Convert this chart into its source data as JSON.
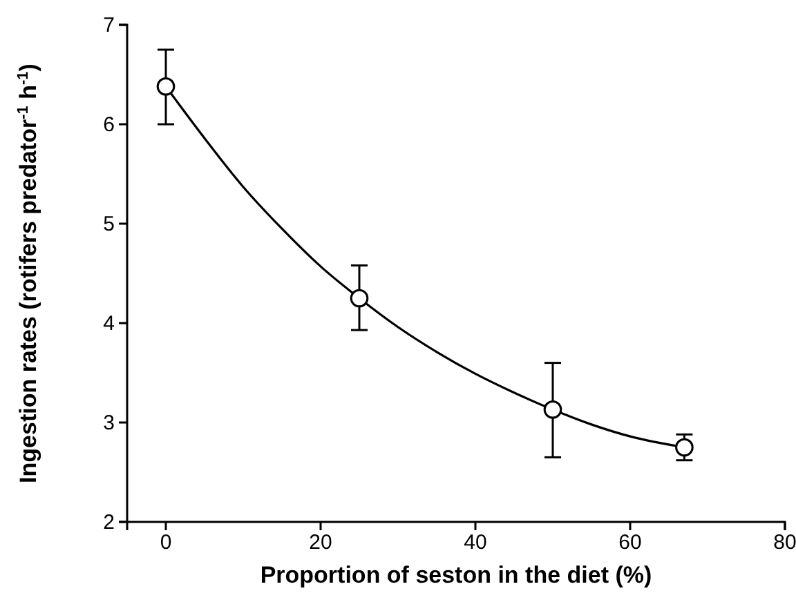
{
  "chart_data": {
    "type": "scatter",
    "xlabel": "Proportion of seston in the diet (%)",
    "ylabel": "Ingestion rates (rotifers predator$^{-1}$ h$^{-1}$)",
    "xlim": [
      -5,
      80
    ],
    "xticks": [
      0,
      20,
      40,
      60,
      80
    ],
    "ylim": [
      2,
      7
    ],
    "yticks": [
      2,
      3,
      4,
      5,
      6,
      7
    ],
    "grid": false,
    "series": [
      {
        "type": "line",
        "color": "#000000",
        "x": [
          0,
          5,
          10,
          15,
          20,
          25,
          30,
          35,
          40,
          45,
          50,
          55,
          60,
          67
        ],
        "values": [
          6.38,
          5.86,
          5.37,
          4.95,
          4.57,
          4.25,
          3.96,
          3.71,
          3.49,
          3.3,
          3.13,
          2.98,
          2.86,
          2.75
        ],
        "marker": "none",
        "line_style": "solid"
      },
      {
        "color": "#000000",
        "x": [
          0,
          25,
          50,
          67
        ],
        "values": [
          6.38,
          4.25,
          3.13,
          2.75
        ],
        "errors": [
          [
            6.0,
            6.75
          ],
          [
            3.93,
            4.58
          ],
          [
            2.65,
            3.6
          ],
          [
            2.62,
            2.88
          ]
        ],
        "marker": "circle"
      }
    ]
  }
}
